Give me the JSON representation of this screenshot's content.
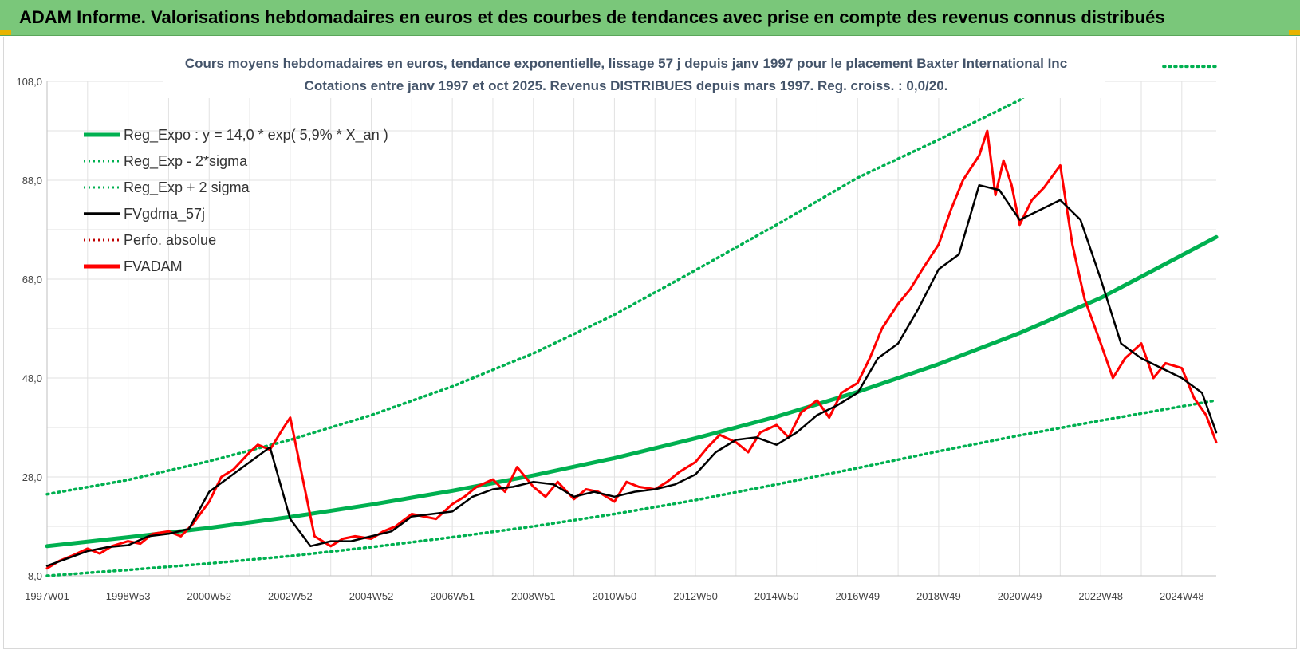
{
  "header": {
    "title": "ADAM Informe. Valorisations hebdomadaires en euros et des courbes de tendances avec prise en compte des revenus connus distribués"
  },
  "chart_data": {
    "type": "line",
    "title": "Cours moyens hebdomadaires en euros, tendance exponentielle, lissage 57 j depuis janv 1997 pour le placement Baxter International Inc",
    "subtitle": "Cotations entre janv 1997 et oct 2025. Revenus DISTRIBUES depuis mars 1997.  Reg. croiss. : 0,0/20.",
    "xlabel": "",
    "ylabel": "",
    "x_ticks": [
      "1997W01",
      "1998W53",
      "2000W52",
      "2002W52",
      "2004W52",
      "2006W51",
      "2008W51",
      "2010W50",
      "2012W50",
      "2014W50",
      "2016W49",
      "2018W49",
      "2020W49",
      "2022W48",
      "2024W48"
    ],
    "x_tick_years": [
      1997.0,
      1999.0,
      2001.0,
      2003.0,
      2005.0,
      2007.0,
      2009.0,
      2011.0,
      2013.0,
      2015.0,
      2017.0,
      2019.0,
      2021.0,
      2023.0,
      2025.0
    ],
    "xlim": [
      1997.0,
      2025.85
    ],
    "y_ticks": [
      "8,0",
      "28,0",
      "48,0",
      "68,0",
      "88,0",
      "108,0"
    ],
    "ylim": [
      8,
      108
    ],
    "grid": true,
    "legend_position": "top-left",
    "legend": [
      {
        "label": "Reg_Expo : y = 14,0 * exp( 5,9% *  X_an )",
        "color": "#00b050",
        "style": "solid-thick"
      },
      {
        "label": "Reg_Exp - 2*sigma",
        "color": "#00b050",
        "style": "dotted"
      },
      {
        "label": "Reg_Exp + 2 sigma",
        "color": "#00b050",
        "style": "dotted"
      },
      {
        "label": "FVgdma_57j",
        "color": "#000000",
        "style": "solid"
      },
      {
        "label": "Perfo. absolue",
        "color": "#c00000",
        "style": "dotted"
      },
      {
        "label": "FVADAM",
        "color": "#ff0000",
        "style": "solid-thick"
      }
    ],
    "series": [
      {
        "name": "Reg_Expo : y = 14,0 * exp( 5,9% *  X_an )",
        "color": "#00b050",
        "x": [
          1997.0,
          1999.0,
          2001.0,
          2003.0,
          2005.0,
          2007.0,
          2009.0,
          2011.0,
          2013.0,
          2015.0,
          2017.0,
          2019.0,
          2021.0,
          2023.0,
          2025.85
        ],
        "values": [
          14.0,
          15.8,
          17.7,
          19.9,
          22.4,
          25.2,
          28.3,
          31.8,
          35.8,
          40.2,
          45.2,
          50.8,
          57.1,
          64.2,
          76.5
        ]
      },
      {
        "name": "Reg_Exp - 2*sigma",
        "color": "#00b050",
        "x": [
          1997.0,
          1999.0,
          2001.0,
          2003.0,
          2005.0,
          2007.0,
          2009.0,
          2011.0,
          2013.0,
          2015.0,
          2017.0,
          2019.0,
          2021.0,
          2023.0,
          2025.85
        ],
        "values": [
          8.0,
          9.2,
          10.5,
          12.0,
          13.8,
          15.8,
          18.0,
          20.5,
          23.3,
          26.5,
          29.8,
          33.2,
          36.4,
          39.4,
          43.5
        ]
      },
      {
        "name": "Reg_Exp + 2 sigma",
        "color": "#00b050",
        "x": [
          1997.0,
          1999.0,
          2001.0,
          2003.0,
          2005.0,
          2007.0,
          2009.0,
          2011.0,
          2013.0,
          2015.0,
          2017.0,
          2019.0,
          2021.0,
          2021.5
        ],
        "values": [
          24.5,
          27.4,
          31.2,
          35.5,
          40.5,
          46.3,
          53.0,
          60.8,
          69.8,
          79.0,
          88.5,
          96.2,
          104.2,
          107.5
        ]
      },
      {
        "name": "Reg_Exp + 2 sigma (upper segment)",
        "color": "#00b050",
        "x": [
          2024.55,
          2025.85
        ],
        "values": [
          111.0,
          111.0
        ]
      },
      {
        "name": "FVgdma_57j",
        "color": "#000000",
        "x": [
          1997.0,
          1997.5,
          1998.0,
          1998.5,
          1999.0,
          1999.5,
          2000.0,
          2000.5,
          2001.0,
          2001.5,
          2002.0,
          2002.5,
          2003.0,
          2003.5,
          2004.0,
          2004.5,
          2005.0,
          2005.5,
          2006.0,
          2006.5,
          2007.0,
          2007.5,
          2008.0,
          2008.5,
          2009.0,
          2009.5,
          2010.0,
          2010.5,
          2011.0,
          2011.5,
          2012.0,
          2012.5,
          2013.0,
          2013.5,
          2014.0,
          2014.5,
          2015.0,
          2015.5,
          2016.0,
          2016.5,
          2017.0,
          2017.5,
          2018.0,
          2018.5,
          2019.0,
          2019.5,
          2020.0,
          2020.5,
          2021.0,
          2021.5,
          2022.0,
          2022.5,
          2023.0,
          2023.5,
          2024.0,
          2024.5,
          2025.0,
          2025.5,
          2025.85
        ],
        "values": [
          10.0,
          11.5,
          13.0,
          13.8,
          14.2,
          16.0,
          16.5,
          17.5,
          25.0,
          28.0,
          31.0,
          34.0,
          19.5,
          14.0,
          15.0,
          15.0,
          16.0,
          17.0,
          20.0,
          20.5,
          21.0,
          24.0,
          25.5,
          26.0,
          27.0,
          26.5,
          24.0,
          25.0,
          24.0,
          25.0,
          25.5,
          26.5,
          28.5,
          33.0,
          35.5,
          36.0,
          34.5,
          37.0,
          40.5,
          42.5,
          45.0,
          52.0,
          55.0,
          62.0,
          70.0,
          73.0,
          87.0,
          86.0,
          80.0,
          82.0,
          84.0,
          80.0,
          68.0,
          55.0,
          52.0,
          50.0,
          48.0,
          45.0,
          37.0
        ]
      },
      {
        "name": "FVADAM",
        "color": "#ff0000",
        "x": [
          1997.0,
          1997.3,
          1997.6,
          1998.0,
          1998.3,
          1998.6,
          1999.0,
          1999.3,
          1999.6,
          2000.0,
          2000.3,
          2000.6,
          2001.0,
          2001.3,
          2001.6,
          2002.0,
          2002.2,
          2002.5,
          2002.8,
          2003.0,
          2003.3,
          2003.6,
          2004.0,
          2004.3,
          2004.6,
          2005.0,
          2005.3,
          2005.6,
          2006.0,
          2006.3,
          2006.6,
          2007.0,
          2007.3,
          2007.6,
          2008.0,
          2008.3,
          2008.6,
          2009.0,
          2009.3,
          2009.6,
          2010.0,
          2010.3,
          2010.6,
          2011.0,
          2011.3,
          2011.6,
          2012.0,
          2012.3,
          2012.6,
          2013.0,
          2013.3,
          2013.6,
          2014.0,
          2014.3,
          2014.6,
          2015.0,
          2015.3,
          2015.6,
          2016.0,
          2016.3,
          2016.6,
          2017.0,
          2017.3,
          2017.6,
          2018.0,
          2018.3,
          2018.6,
          2019.0,
          2019.3,
          2019.6,
          2020.0,
          2020.2,
          2020.4,
          2020.6,
          2020.8,
          2021.0,
          2021.3,
          2021.6,
          2022.0,
          2022.3,
          2022.6,
          2023.0,
          2023.3,
          2023.6,
          2024.0,
          2024.3,
          2024.6,
          2025.0,
          2025.3,
          2025.6,
          2025.85
        ],
        "values": [
          9.5,
          11.0,
          12.0,
          13.5,
          12.5,
          14.0,
          15.0,
          14.5,
          16.5,
          17.0,
          16.0,
          18.5,
          23.0,
          28.0,
          29.5,
          33.0,
          34.5,
          33.5,
          37.5,
          40.0,
          28.0,
          16.0,
          14.0,
          15.5,
          16.0,
          15.5,
          17.0,
          18.0,
          20.5,
          20.0,
          19.5,
          22.5,
          24.0,
          26.0,
          27.5,
          25.0,
          30.0,
          26.0,
          24.0,
          27.0,
          23.5,
          25.5,
          25.0,
          23.0,
          27.0,
          26.0,
          25.5,
          27.0,
          29.0,
          31.0,
          34.0,
          36.5,
          35.0,
          33.0,
          37.0,
          38.5,
          36.0,
          41.0,
          43.5,
          40.0,
          45.0,
          47.0,
          52.0,
          58.0,
          63.0,
          66.0,
          70.0,
          75.0,
          82.0,
          88.0,
          93.0,
          98.0,
          85.0,
          92.0,
          87.0,
          79.0,
          84.0,
          86.5,
          91.0,
          75.0,
          64.0,
          55.0,
          48.0,
          52.0,
          55.0,
          48.0,
          51.0,
          50.0,
          44.0,
          40.5,
          35.0
        ]
      }
    ]
  }
}
